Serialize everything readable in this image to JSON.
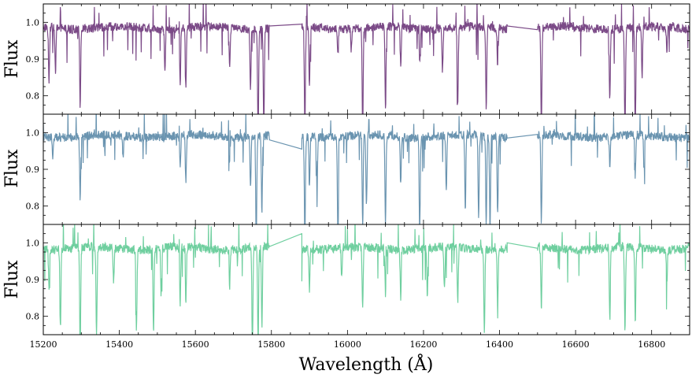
{
  "chart_data": [
    {
      "type": "line",
      "panel": "top",
      "ylabel": "Flux",
      "xlabel": "",
      "xlim": [
        15200,
        16900
      ],
      "ylim": [
        0.75,
        1.05
      ],
      "xticks": [
        15200,
        15400,
        15600,
        15800,
        16000,
        16200,
        16400,
        16600,
        16800
      ],
      "xtick_labels_visible": false,
      "yticks": [
        0.8,
        0.9,
        1.0
      ],
      "ytick_labels": [
        "0.8",
        "0.9",
        "1.0"
      ],
      "series": [
        {
          "color": "#7b4a87",
          "continuum": 0.985,
          "noise": 0.012,
          "segments": [
            [
              15200,
              15795
            ],
            [
              15880,
              16420
            ],
            [
              16500,
              16900
            ]
          ],
          "bridges": [
            [
              15795,
              0.99,
              15880,
              0.995
            ],
            [
              16420,
              0.99,
              16500,
              0.98
            ]
          ],
          "lines": [
            [
              15215,
              0.84
            ],
            [
              15232,
              0.86
            ],
            [
              15297,
              0.77
            ],
            [
              15520,
              0.87
            ],
            [
              15560,
              0.83
            ],
            [
              15575,
              0.83
            ],
            [
              15690,
              0.88
            ],
            [
              15745,
              0.82
            ],
            [
              15765,
              0.69
            ],
            [
              15780,
              0.71
            ],
            [
              15888,
              0.7
            ],
            [
              15900,
              0.82
            ],
            [
              15975,
              0.92
            ],
            [
              16010,
              0.93
            ],
            [
              16040,
              0.7
            ],
            [
              16100,
              0.75
            ],
            [
              16140,
              0.88
            ],
            [
              16190,
              0.89
            ],
            [
              16250,
              0.87
            ],
            [
              16290,
              0.78
            ],
            [
              16365,
              0.77
            ],
            [
              16395,
              0.88
            ],
            [
              16510,
              0.7
            ],
            [
              16690,
              0.79
            ],
            [
              16730,
              0.7
            ],
            [
              16757,
              0.7
            ],
            [
              16775,
              0.85
            ],
            [
              16840,
              0.92
            ]
          ]
        }
      ]
    },
    {
      "type": "line",
      "panel": "middle",
      "ylabel": "Flux",
      "xlabel": "",
      "xlim": [
        15200,
        16900
      ],
      "ylim": [
        0.75,
        1.05
      ],
      "xticks": [
        15200,
        15400,
        15600,
        15800,
        16000,
        16200,
        16400,
        16600,
        16800
      ],
      "xtick_labels_visible": false,
      "yticks": [
        0.8,
        0.9,
        1.0
      ],
      "ytick_labels": [
        "0.8",
        "0.9",
        "1.0"
      ],
      "series": [
        {
          "color": "#6a94b0",
          "continuum": 0.99,
          "noise": 0.012,
          "segments": [
            [
              15200,
              15795
            ],
            [
              15880,
              16420
            ],
            [
              16500,
              16900
            ]
          ],
          "bridges": [
            [
              15795,
              0.98,
              15880,
              0.955
            ],
            [
              16420,
              0.985,
              16500,
              0.995
            ]
          ],
          "lines": [
            [
              15225,
              0.93
            ],
            [
              15297,
              0.81
            ],
            [
              15410,
              0.93
            ],
            [
              15560,
              0.9
            ],
            [
              15575,
              0.86
            ],
            [
              15690,
              0.93
            ],
            [
              15745,
              0.86
            ],
            [
              15760,
              0.7
            ],
            [
              15775,
              0.77
            ],
            [
              15888,
              0.7
            ],
            [
              15900,
              0.85
            ],
            [
              15920,
              0.86
            ],
            [
              15975,
              0.7
            ],
            [
              16040,
              0.75
            ],
            [
              16050,
              0.8
            ],
            [
              16100,
              0.75
            ],
            [
              16140,
              0.86
            ],
            [
              16190,
              0.74
            ],
            [
              16260,
              0.85
            ],
            [
              16310,
              0.78
            ],
            [
              16345,
              0.76
            ],
            [
              16365,
              0.76
            ],
            [
              16375,
              0.74
            ],
            [
              16395,
              0.78
            ],
            [
              16510,
              0.75
            ],
            [
              16690,
              0.91
            ],
            [
              16757,
              0.88
            ],
            [
              16780,
              0.9
            ]
          ]
        }
      ]
    },
    {
      "type": "line",
      "panel": "bottom",
      "ylabel": "Flux",
      "xlabel": "Wavelength (Å)",
      "xlim": [
        15200,
        16900
      ],
      "ylim": [
        0.75,
        1.05
      ],
      "xticks": [
        15200,
        15400,
        15600,
        15800,
        16000,
        16200,
        16400,
        16600,
        16800
      ],
      "xtick_labels": [
        "15200",
        "15400",
        "15600",
        "15800",
        "16000",
        "16200",
        "16400",
        "16600",
        "16800"
      ],
      "yticks": [
        0.8,
        0.9,
        1.0
      ],
      "ytick_labels": [
        "0.8",
        "0.9",
        "1.0"
      ],
      "series": [
        {
          "color": "#6fcf9f",
          "continuum": 0.985,
          "noise": 0.012,
          "segments": [
            [
              15200,
              15795
            ],
            [
              15880,
              16420
            ],
            [
              16500,
              16900
            ]
          ],
          "bridges": [
            [
              15795,
              0.99,
              15880,
              1.025
            ],
            [
              16420,
              1.0,
              16500,
              0.985
            ]
          ],
          "lines": [
            [
              15215,
              0.88
            ],
            [
              15245,
              0.77
            ],
            [
              15297,
              0.7
            ],
            [
              15340,
              0.75
            ],
            [
              15385,
              0.89
            ],
            [
              15445,
              0.76
            ],
            [
              15490,
              0.75
            ],
            [
              15510,
              0.86
            ],
            [
              15560,
              0.82
            ],
            [
              15575,
              0.84
            ],
            [
              15690,
              0.88
            ],
            [
              15750,
              0.71
            ],
            [
              15765,
              0.73
            ],
            [
              15775,
              0.77
            ],
            [
              15900,
              0.87
            ],
            [
              15985,
              0.9
            ],
            [
              16040,
              0.82
            ],
            [
              16100,
              0.86
            ],
            [
              16140,
              0.85
            ],
            [
              16210,
              0.86
            ],
            [
              16255,
              0.87
            ],
            [
              16290,
              0.84
            ],
            [
              16360,
              0.76
            ],
            [
              16395,
              0.84
            ],
            [
              16510,
              0.82
            ],
            [
              16690,
              0.79
            ],
            [
              16730,
              0.76
            ],
            [
              16757,
              0.78
            ],
            [
              16840,
              0.89
            ]
          ]
        }
      ]
    }
  ]
}
